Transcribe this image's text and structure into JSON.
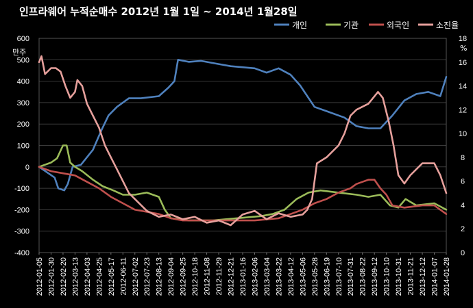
{
  "chart_data": {
    "type": "line",
    "title": "인프라웨어 누적순매수  2012년 1월 1일 ~ 2014년 1월28일",
    "left_axis_unit": "만주",
    "right_axis_unit": "%",
    "left_ylim": [
      -400,
      600
    ],
    "left_ticks": [
      -400,
      -300,
      -200,
      -100,
      0,
      100,
      200,
      300,
      400,
      500,
      600
    ],
    "right_ylim": [
      0,
      18
    ],
    "right_ticks": [
      0,
      2,
      4,
      6,
      8,
      10,
      12,
      14,
      16,
      18
    ],
    "x_ticks": [
      "2012-01-05",
      "2012-01-30",
      "2012-02-20",
      "2012-03-13",
      "2012-04-03",
      "2012-04-25",
      "2012-05-17",
      "2012-06-11",
      "2012-07-02",
      "2012-07-23",
      "2012-08-13",
      "2012-09-04",
      "2012-09-25",
      "2012-10-18",
      "2012-11-08",
      "2012-11-29",
      "2012-12-21",
      "2013-01-16",
      "2013-02-06",
      "2013-03-04",
      "2013-03-22",
      "2013-04-12",
      "2013-05-06",
      "2013-05-28",
      "2013-06-19",
      "2013-07-10",
      "2013-07-31",
      "2013-08-22",
      "2013-09-12",
      "2013-10-10",
      "2013-10-31",
      "2013-11-21",
      "2013-12-12",
      "2014-01-07",
      "2014-01-28"
    ],
    "grid": true,
    "legend_position": "top-right",
    "series": [
      {
        "name": "개인",
        "axis": "left",
        "color": "#4f81bd",
        "x": [
          0,
          1.3,
          1.6,
          2.1,
          2.4,
          2.8,
          3.5,
          4.5,
          5.2,
          5.8,
          6.5,
          7.5,
          8.5,
          10,
          10.8,
          11.3,
          11.6,
          12.5,
          13.5,
          15,
          16,
          18,
          19,
          20,
          21,
          21.8,
          22.4,
          23,
          24,
          25.5,
          26.5,
          27.5,
          28.5,
          29.5,
          30.5,
          31.5,
          32.5,
          33.5,
          34
        ],
        "values": [
          0,
          -50,
          -100,
          -110,
          -80,
          0,
          10,
          80,
          170,
          240,
          280,
          320,
          320,
          330,
          370,
          400,
          500,
          490,
          495,
          480,
          470,
          460,
          440,
          460,
          430,
          380,
          330,
          280,
          260,
          230,
          190,
          180,
          180,
          240,
          310,
          340,
          350,
          330,
          420
        ]
      },
      {
        "name": "기관",
        "axis": "left",
        "color": "#9bbb59",
        "x": [
          0,
          1,
          1.5,
          2.0,
          2.3,
          2.6,
          3.0,
          3.6,
          4.5,
          5.3,
          6.2,
          7.0,
          8.0,
          9.0,
          10.0,
          10.5,
          11.0,
          12.5,
          14.5,
          16.5,
          18.5,
          19.5,
          20.5,
          21.5,
          22.5,
          23.5,
          25.0,
          26.5,
          27.5,
          28.5,
          29.3,
          30.0,
          30.6,
          31.5,
          33.0,
          34.0
        ],
        "values": [
          0,
          20,
          40,
          100,
          100,
          20,
          0,
          -20,
          -60,
          -90,
          -110,
          -130,
          -130,
          -120,
          -140,
          -200,
          -240,
          -250,
          -250,
          -240,
          -230,
          -220,
          -200,
          -150,
          -120,
          -110,
          -120,
          -130,
          -140,
          -130,
          -180,
          -190,
          -150,
          -180,
          -170,
          -200
        ]
      },
      {
        "name": "외국인",
        "axis": "left",
        "color": "#c0504d",
        "x": [
          0,
          1,
          2,
          3,
          4,
          5,
          6,
          7,
          8,
          9,
          10,
          11,
          12,
          14,
          16,
          18,
          20,
          21,
          22,
          23,
          24,
          25,
          26,
          26.5,
          27,
          27.5,
          28,
          28.5,
          29,
          29.5,
          30.5,
          32,
          33,
          34
        ],
        "values": [
          0,
          -20,
          -30,
          -40,
          -70,
          -100,
          -140,
          -170,
          -200,
          -210,
          -220,
          -240,
          -250,
          -250,
          -250,
          -250,
          -240,
          -220,
          -200,
          -170,
          -150,
          -120,
          -100,
          -80,
          -70,
          -60,
          -60,
          -100,
          -130,
          -180,
          -190,
          -180,
          -180,
          -220
        ]
      },
      {
        "name": "소진율",
        "axis": "right",
        "color": "#e6a09c",
        "x": [
          0,
          0.2,
          0.5,
          1.0,
          1.4,
          1.8,
          2.2,
          2.6,
          3.0,
          3.2,
          3.6,
          4.0,
          4.5,
          5.0,
          5.5,
          6.0,
          6.5,
          7.0,
          7.5,
          8.0,
          9.0,
          10.0,
          11.0,
          12.0,
          13.0,
          14.0,
          15.0,
          16.0,
          17.0,
          18.0,
          19.0,
          20.0,
          21.0,
          22.0,
          22.4,
          22.8,
          23.2,
          24.0,
          25.0,
          25.5,
          26.0,
          26.5,
          27.5,
          28.3,
          28.7,
          29.2,
          29.6,
          30.0,
          30.5,
          31.0,
          32.0,
          33.0,
          33.5,
          34.0
        ],
        "values": [
          16,
          16.5,
          15,
          15.5,
          15.5,
          15.2,
          14,
          13,
          13.5,
          14.5,
          14,
          12.5,
          11.5,
          10.5,
          9,
          8,
          7,
          6,
          5,
          4.5,
          3.5,
          3,
          3.2,
          2.8,
          3,
          2.5,
          2.7,
          2.3,
          3.2,
          3.5,
          2.8,
          3.3,
          3,
          3.2,
          3.6,
          4.5,
          7.5,
          8,
          9,
          10,
          11.5,
          12,
          12.5,
          13.5,
          13,
          11,
          9,
          6.5,
          5.8,
          6.5,
          7.5,
          7.5,
          6.5,
          5
        ]
      }
    ]
  }
}
